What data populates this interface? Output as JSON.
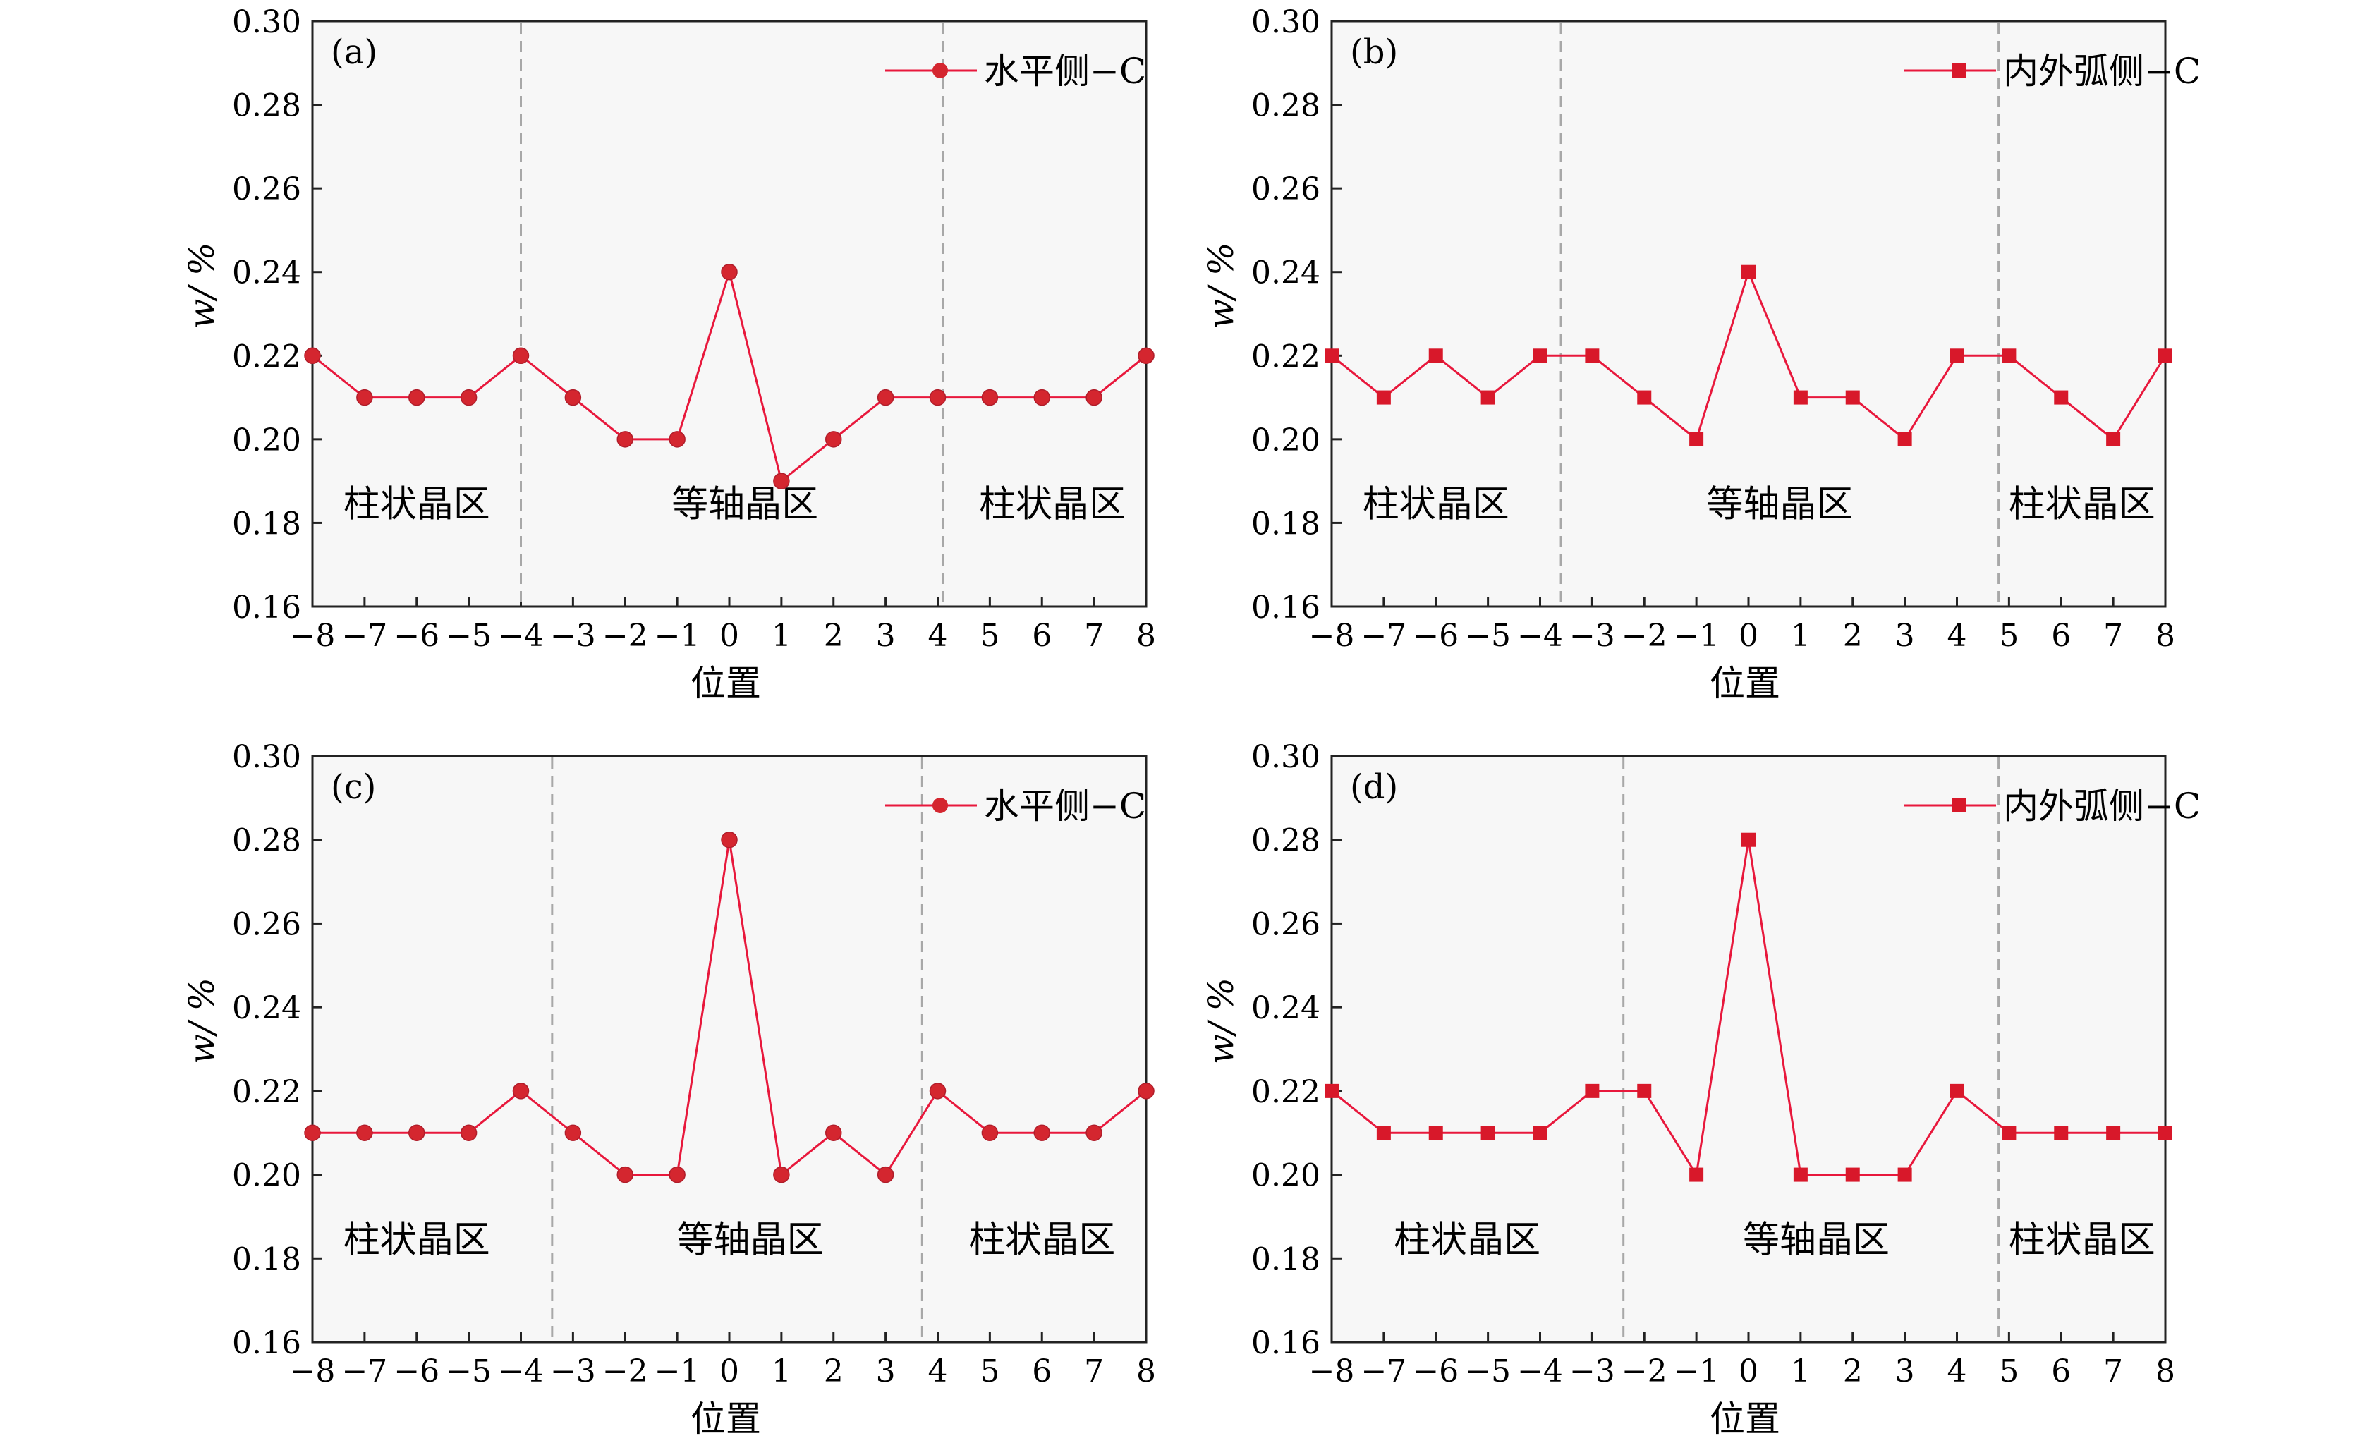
{
  "chart_data": [
    {
      "panel": "(a)",
      "type": "line",
      "marker": "circle",
      "color": "#e8183c",
      "marker_fill": "#d4262f",
      "xlabel": "位置",
      "ylabel": "w/ %",
      "xlim": [
        -8,
        8
      ],
      "ylim": [
        0.16,
        0.3
      ],
      "x_ticks": [
        "−8",
        "−7",
        "−6",
        "−5",
        "−4",
        "−3",
        "−2",
        "−1",
        "0",
        "1",
        "2",
        "3",
        "4",
        "5",
        "6",
        "7",
        "8"
      ],
      "y_ticks": [
        "0.16",
        "0.18",
        "0.20",
        "0.22",
        "0.24",
        "0.26",
        "0.28",
        "0.30"
      ],
      "series": [
        {
          "name": "水平侧−C",
          "x": [
            -8,
            -7,
            -6,
            -5,
            -4,
            -3,
            -2,
            -1,
            0,
            1,
            2,
            3,
            4,
            5,
            6,
            7,
            8
          ],
          "y": [
            0.22,
            0.21,
            0.21,
            0.21,
            0.22,
            0.21,
            0.2,
            0.2,
            0.24,
            0.19,
            0.2,
            0.21,
            0.21,
            0.21,
            0.21,
            0.21,
            0.22
          ]
        }
      ],
      "boundaries": [
        -4,
        4.1
      ],
      "regions": [
        {
          "label": "柱状晶区",
          "x": -6
        },
        {
          "label": "等轴晶区",
          "x": 0.3
        },
        {
          "label": "柱状晶区",
          "x": 6.2
        }
      ],
      "legend_position": "top-right"
    },
    {
      "panel": "(b)",
      "type": "line",
      "marker": "square",
      "color": "#e8183c",
      "marker_fill": "#d8182a",
      "xlabel": "位置",
      "ylabel": "w/ %",
      "xlim": [
        -8,
        8
      ],
      "ylim": [
        0.16,
        0.3
      ],
      "x_ticks": [
        "−8",
        "−7",
        "−6",
        "−5",
        "−4",
        "−3",
        "−2",
        "−1",
        "0",
        "1",
        "2",
        "3",
        "4",
        "5",
        "6",
        "7",
        "8"
      ],
      "y_ticks": [
        "0.16",
        "0.18",
        "0.20",
        "0.22",
        "0.24",
        "0.26",
        "0.28",
        "0.30"
      ],
      "series": [
        {
          "name": "内外弧侧−C",
          "x": [
            -8,
            -7,
            -6,
            -5,
            -4,
            -3,
            -2,
            -1,
            0,
            1,
            2,
            3,
            4,
            5,
            6,
            7,
            8
          ],
          "y": [
            0.22,
            0.21,
            0.22,
            0.21,
            0.22,
            0.22,
            0.21,
            0.2,
            0.24,
            0.21,
            0.21,
            0.2,
            0.22,
            0.22,
            0.21,
            0.2,
            0.22
          ]
        }
      ],
      "boundaries": [
        -3.6,
        4.8
      ],
      "regions": [
        {
          "label": "柱状晶区",
          "x": -6
        },
        {
          "label": "等轴晶区",
          "x": 0.6
        },
        {
          "label": "柱状晶区",
          "x": 6.4
        }
      ],
      "legend_position": "top-right"
    },
    {
      "panel": "(c)",
      "type": "line",
      "marker": "circle",
      "color": "#e8183c",
      "marker_fill": "#d4262f",
      "xlabel": "位置",
      "ylabel": "w/ %",
      "xlim": [
        -8,
        8
      ],
      "ylim": [
        0.16,
        0.3
      ],
      "x_ticks": [
        "−8",
        "−7",
        "−6",
        "−5",
        "−4",
        "−3",
        "−2",
        "−1",
        "0",
        "1",
        "2",
        "3",
        "4",
        "5",
        "6",
        "7",
        "8"
      ],
      "y_ticks": [
        "0.16",
        "0.18",
        "0.20",
        "0.22",
        "0.24",
        "0.26",
        "0.28",
        "0.30"
      ],
      "series": [
        {
          "name": "水平侧−C",
          "x": [
            -8,
            -7,
            -6,
            -5,
            -4,
            -3,
            -2,
            -1,
            0,
            1,
            2,
            3,
            4,
            5,
            6,
            7,
            8
          ],
          "y": [
            0.21,
            0.21,
            0.21,
            0.21,
            0.22,
            0.21,
            0.2,
            0.2,
            0.28,
            0.2,
            0.21,
            0.2,
            0.22,
            0.21,
            0.21,
            0.21,
            0.22
          ]
        }
      ],
      "boundaries": [
        -3.4,
        3.7
      ],
      "regions": [
        {
          "label": "柱状晶区",
          "x": -6
        },
        {
          "label": "等轴晶区",
          "x": 0.4
        },
        {
          "label": "柱状晶区",
          "x": 6
        }
      ],
      "legend_position": "top-right"
    },
    {
      "panel": "(d)",
      "type": "line",
      "marker": "square",
      "color": "#e8183c",
      "marker_fill": "#d8182a",
      "xlabel": "位置",
      "ylabel": "w/ %",
      "xlim": [
        -8,
        8
      ],
      "ylim": [
        0.16,
        0.3
      ],
      "x_ticks": [
        "−8",
        "−7",
        "−6",
        "−5",
        "−4",
        "−3",
        "−2",
        "−1",
        "0",
        "1",
        "2",
        "3",
        "4",
        "5",
        "6",
        "7",
        "8"
      ],
      "y_ticks": [
        "0.16",
        "0.18",
        "0.20",
        "0.22",
        "0.24",
        "0.26",
        "0.28",
        "0.30"
      ],
      "series": [
        {
          "name": "内外弧侧−C",
          "x": [
            -8,
            -7,
            -6,
            -5,
            -4,
            -3,
            -2,
            -1,
            0,
            1,
            2,
            3,
            4,
            5,
            6,
            7,
            8
          ],
          "y": [
            0.22,
            0.21,
            0.21,
            0.21,
            0.21,
            0.22,
            0.22,
            0.2,
            0.28,
            0.2,
            0.2,
            0.2,
            0.22,
            0.21,
            0.21,
            0.21,
            0.21
          ]
        }
      ],
      "boundaries": [
        -2.4,
        4.8
      ],
      "regions": [
        {
          "label": "柱状晶区",
          "x": -5.4
        },
        {
          "label": "等轴晶区",
          "x": 1.3
        },
        {
          "label": "柱状晶区",
          "x": 6.4
        }
      ],
      "legend_position": "top-right"
    }
  ]
}
